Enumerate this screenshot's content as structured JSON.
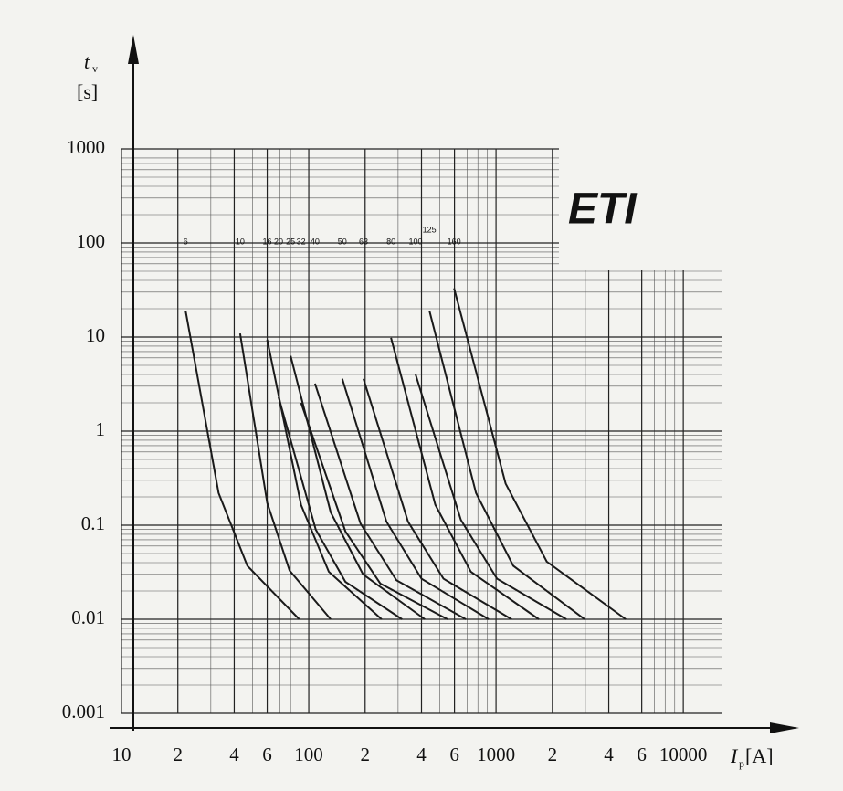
{
  "chart_data": {
    "type": "line",
    "log_x": true,
    "log_y": true,
    "grid": true,
    "color": "#1a1a1a",
    "logo": "ETI",
    "y_label": "t",
    "y_label_sub": "v",
    "y_unit": "[s]",
    "x_label": "I",
    "x_label_sub": "p",
    "x_unit": "[A]",
    "xlim": [
      10,
      16000
    ],
    "ylim": [
      0.001,
      1000
    ],
    "xticks": [
      10,
      {
        "value": 20,
        "label": "2"
      },
      {
        "value": 40,
        "label": "4"
      },
      {
        "value": 60,
        "label": "6"
      },
      100,
      {
        "value": 200,
        "label": "2"
      },
      {
        "value": 400,
        "label": "4"
      },
      {
        "value": 600,
        "label": "6"
      },
      1000,
      {
        "value": 2000,
        "label": "2"
      },
      {
        "value": 4000,
        "label": "4"
      },
      {
        "value": 6000,
        "label": "6"
      },
      10000
    ],
    "yticks": [
      1000,
      100,
      10,
      1,
      0.1,
      0.01,
      0.001
    ],
    "series": [
      {
        "name": "6",
        "x": [
          22,
          33,
          47,
          89
        ],
        "values": [
          19,
          0.22,
          0.037,
          0.01
        ]
      },
      {
        "name": "10",
        "x": [
          43,
          60,
          79,
          131
        ],
        "values": [
          10.9,
          0.173,
          0.033,
          0.01
        ]
      },
      {
        "name": "16",
        "x": [
          60,
          91,
          128,
          245
        ],
        "values": [
          9.4,
          0.164,
          0.032,
          0.01
        ]
      },
      {
        "name": "20",
        "x": [
          69,
          109,
          157,
          315
        ],
        "values": [
          2.3,
          0.09,
          0.025,
          0.01
        ]
      },
      {
        "name": "25",
        "x": [
          80,
          131,
          195,
          417
        ],
        "values": [
          6.3,
          0.137,
          0.03,
          0.01
        ]
      },
      {
        "name": "32",
        "x": [
          91,
          157,
          241,
          551
        ],
        "values": [
          2.0,
          0.086,
          0.024,
          0.01
        ]
      },
      {
        "name": "40",
        "x": [
          108,
          189,
          294,
          690
        ],
        "values": [
          3.2,
          0.104,
          0.026,
          0.01
        ]
      },
      {
        "name": "50",
        "x": [
          151,
          260,
          400,
          914
        ],
        "values": [
          3.6,
          0.109,
          0.027,
          0.01
        ]
      },
      {
        "name": "63",
        "x": [
          196,
          339,
          524,
          1211
        ],
        "values": [
          3.6,
          0.109,
          0.027,
          0.01
        ]
      },
      {
        "name": "80",
        "x": [
          275,
          474,
          734,
          1694
        ],
        "values": [
          9.8,
          0.165,
          0.032,
          0.01
        ]
      },
      {
        "name": "100",
        "x": [
          372,
          649,
          1012,
          2375
        ],
        "values": [
          4.0,
          0.114,
          0.027,
          0.01
        ]
      },
      {
        "name": "125",
        "x": [
          441,
          782,
          1236,
          2974
        ],
        "values": [
          19,
          0.22,
          0.037,
          0.01
        ]
      },
      {
        "name": "160",
        "x": [
          597,
          1125,
          1866,
          4931
        ],
        "values": [
          33,
          0.277,
          0.041,
          0.01
        ]
      }
    ]
  }
}
